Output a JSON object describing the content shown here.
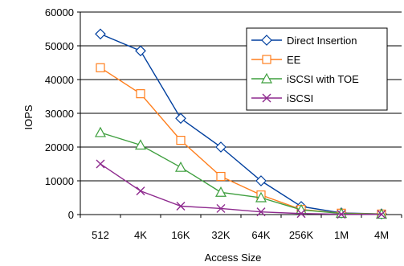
{
  "chart_data": {
    "type": "line",
    "title": "",
    "xlabel": "Access Size",
    "ylabel": "IOPS",
    "categories": [
      "512",
      "4K",
      "16K",
      "32K",
      "64K",
      "256K",
      "1M",
      "4M"
    ],
    "ylim": [
      0,
      60000
    ],
    "yticks": [
      "0",
      "10000",
      "20000",
      "30000",
      "40000",
      "50000",
      "60000"
    ],
    "ytick_values": [
      0,
      10000,
      20000,
      30000,
      40000,
      50000,
      60000
    ],
    "grid": "horizontal",
    "legend_position": "top-right",
    "series": [
      {
        "name": "Direct Insertion",
        "color": "#003f9e",
        "marker": "diamond",
        "values": [
          53500,
          48500,
          28500,
          20000,
          10000,
          2400,
          500,
          200
        ]
      },
      {
        "name": "EE",
        "color": "#ff7f1e",
        "marker": "square",
        "values": [
          43500,
          35800,
          22000,
          11300,
          5800,
          1500,
          400,
          150
        ]
      },
      {
        "name": "iSCSI with TOE",
        "color": "#3f9f3f",
        "marker": "triangle",
        "values": [
          24300,
          20600,
          14000,
          6600,
          5000,
          1400,
          350,
          100
        ]
      },
      {
        "name": "iSCSI",
        "color": "#8e2a8e",
        "marker": "x",
        "values": [
          15000,
          7000,
          2500,
          1800,
          800,
          300,
          100,
          50
        ]
      }
    ]
  }
}
